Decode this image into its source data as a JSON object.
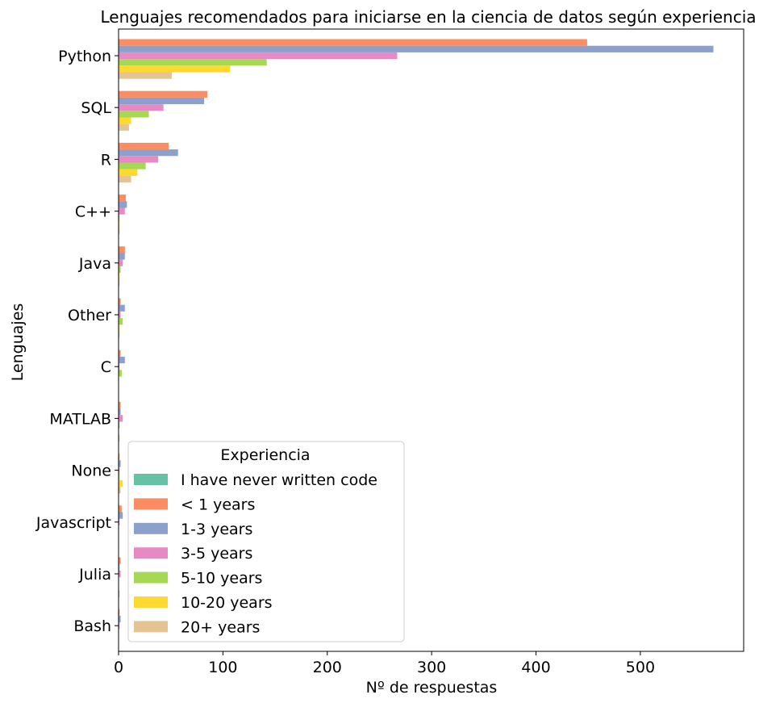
{
  "chart_data": {
    "type": "bar",
    "orientation": "horizontal",
    "title": "Lenguajes recomendados para iniciarse en la ciencia de datos según experiencia",
    "xlabel": "Nº de respuestas",
    "ylabel": "Lenguajes",
    "xlim": [
      0,
      599
    ],
    "xticks": [
      0,
      100,
      200,
      300,
      400,
      500
    ],
    "grid": false,
    "categories": [
      "Python",
      "SQL",
      "R",
      "C++",
      "Java",
      "Other",
      "C",
      "MATLAB",
      "None",
      "Javascript",
      "Julia",
      "Bash"
    ],
    "series": [
      {
        "name": "I have never written code",
        "color": "#66c2a5",
        "values": [
          0,
          0,
          0,
          0,
          0,
          0,
          0,
          0,
          0,
          0,
          0,
          0
        ]
      },
      {
        "name": "< 1 years",
        "color": "#fc8d62",
        "values": [
          449,
          85,
          48,
          7,
          6,
          2,
          2,
          2,
          1,
          3,
          2,
          1
        ]
      },
      {
        "name": "1-3 years",
        "color": "#8da0cb",
        "values": [
          570,
          82,
          57,
          8,
          6,
          6,
          6,
          2,
          2,
          4,
          1,
          2
        ]
      },
      {
        "name": "3-5 years",
        "color": "#e78ac3",
        "values": [
          267,
          43,
          38,
          6,
          4,
          2,
          1,
          4,
          1,
          1,
          2,
          1
        ]
      },
      {
        "name": "5-10 years",
        "color": "#a6d854",
        "values": [
          142,
          29,
          26,
          1,
          2,
          4,
          3,
          1,
          1,
          0,
          0,
          0
        ]
      },
      {
        "name": "10-20 years",
        "color": "#ffd92f",
        "values": [
          107,
          12,
          18,
          1,
          1,
          1,
          0,
          0,
          4,
          0,
          0,
          0
        ]
      },
      {
        "name": "20+ years",
        "color": "#e5c494",
        "values": [
          51,
          10,
          12,
          1,
          1,
          1,
          0,
          1,
          2,
          0,
          1,
          0
        ]
      }
    ],
    "legend": {
      "title": "Experiencia",
      "placement": "lower-left"
    }
  }
}
